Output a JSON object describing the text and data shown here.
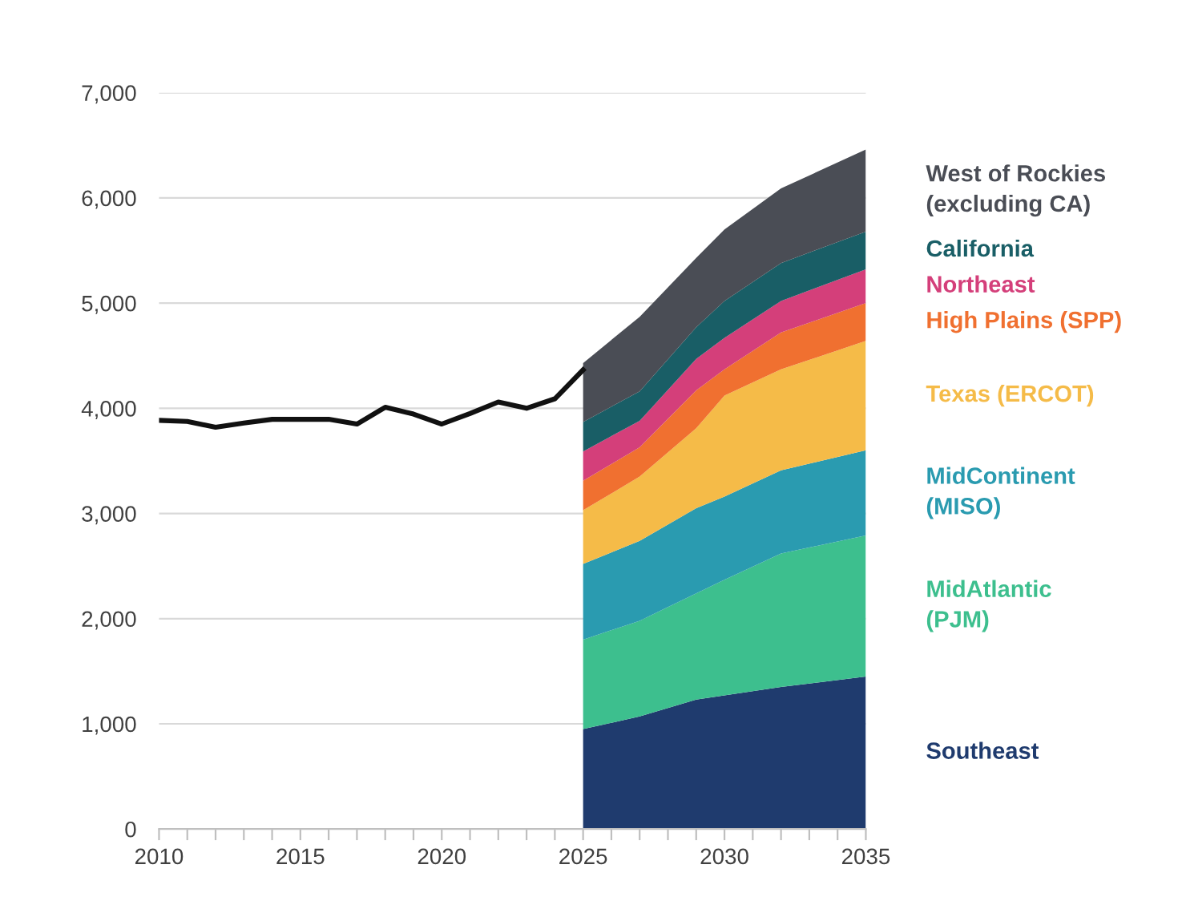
{
  "chart_data": {
    "type": "area",
    "stacked": true,
    "grid": "y",
    "ylim": [
      0,
      7000
    ],
    "yticks": [
      0,
      {
        "value": 1000,
        "label": "1,000"
      },
      {
        "value": 2000,
        "label": "2,000"
      },
      {
        "value": 3000,
        "label": "3,000"
      },
      {
        "value": 4000,
        "label": "4,000"
      },
      {
        "value": 5000,
        "label": "5,000"
      },
      {
        "value": 6000,
        "label": "6,000"
      },
      {
        "value": 7000,
        "label": "7,000"
      }
    ],
    "xlim": [
      2010,
      2035
    ],
    "xticks": [
      2010,
      {
        "value": 2011,
        "label": null
      },
      {
        "value": 2012,
        "label": null
      },
      {
        "value": 2013,
        "label": null
      },
      {
        "value": 2014,
        "label": null
      },
      2015,
      {
        "value": 2016,
        "label": null
      },
      {
        "value": 2017,
        "label": null
      },
      {
        "value": 2018,
        "label": null
      },
      {
        "value": 2019,
        "label": null
      },
      2020,
      {
        "value": 2021,
        "label": null
      },
      {
        "value": 2022,
        "label": null
      },
      {
        "value": 2023,
        "label": null
      },
      {
        "value": 2024,
        "label": null
      },
      2025,
      {
        "value": 2026,
        "label": null
      },
      {
        "value": 2027,
        "label": null
      },
      {
        "value": 2028,
        "label": null
      },
      {
        "value": 2029,
        "label": null
      },
      2030,
      {
        "value": 2031,
        "label": null
      },
      {
        "value": 2032,
        "label": null
      },
      {
        "value": 2033,
        "label": null
      },
      {
        "value": 2034,
        "label": null
      },
      2035
    ],
    "x": [
      2025,
      2027,
      2029,
      2030,
      2032,
      2035
    ],
    "series": [
      {
        "type": "line",
        "color": "#111111",
        "x": [
          2010,
          2011,
          2012,
          2013,
          2014,
          2015,
          2016,
          2017,
          2018,
          2019,
          2020,
          2021,
          2022,
          2023,
          2024,
          2025
        ],
        "values": [
          3885,
          3875,
          3820,
          3860,
          3895,
          3895,
          3895,
          3850,
          4010,
          3945,
          3850,
          3950,
          4060,
          4000,
          4090,
          4365
        ]
      },
      {
        "name": "Southeast",
        "color": "#1f3b6e",
        "values": [
          950,
          1070,
          1230,
          1270,
          1350,
          1450
        ]
      },
      {
        "name": "MidAtlantic\n(PJM)",
        "color": "#3dbf8e",
        "values": [
          850,
          910,
          1010,
          1100,
          1270,
          1340
        ]
      },
      {
        "name": "MidContinent\n(MISO)",
        "color": "#2a9bb0",
        "values": [
          720,
          760,
          810,
          790,
          790,
          810
        ]
      },
      {
        "name": "Texas (ERCOT)",
        "color": "#f5bb48",
        "values": [
          510,
          610,
          760,
          960,
          960,
          1040
        ]
      },
      {
        "name": "High Plains (SPP)",
        "color": "#f07030",
        "values": [
          280,
          280,
          360,
          250,
          350,
          360
        ]
      },
      {
        "name": "Northeast",
        "color": "#d43f7a",
        "values": [
          280,
          250,
          300,
          300,
          300,
          320
        ]
      },
      {
        "name": "California",
        "color": "#195e66",
        "values": [
          280,
          280,
          300,
          350,
          360,
          360
        ]
      },
      {
        "name": "West of Rockies\n(excluding CA)",
        "color": "#4a4d55",
        "values": [
          560,
          710,
          660,
          680,
          710,
          780
        ]
      }
    ]
  }
}
